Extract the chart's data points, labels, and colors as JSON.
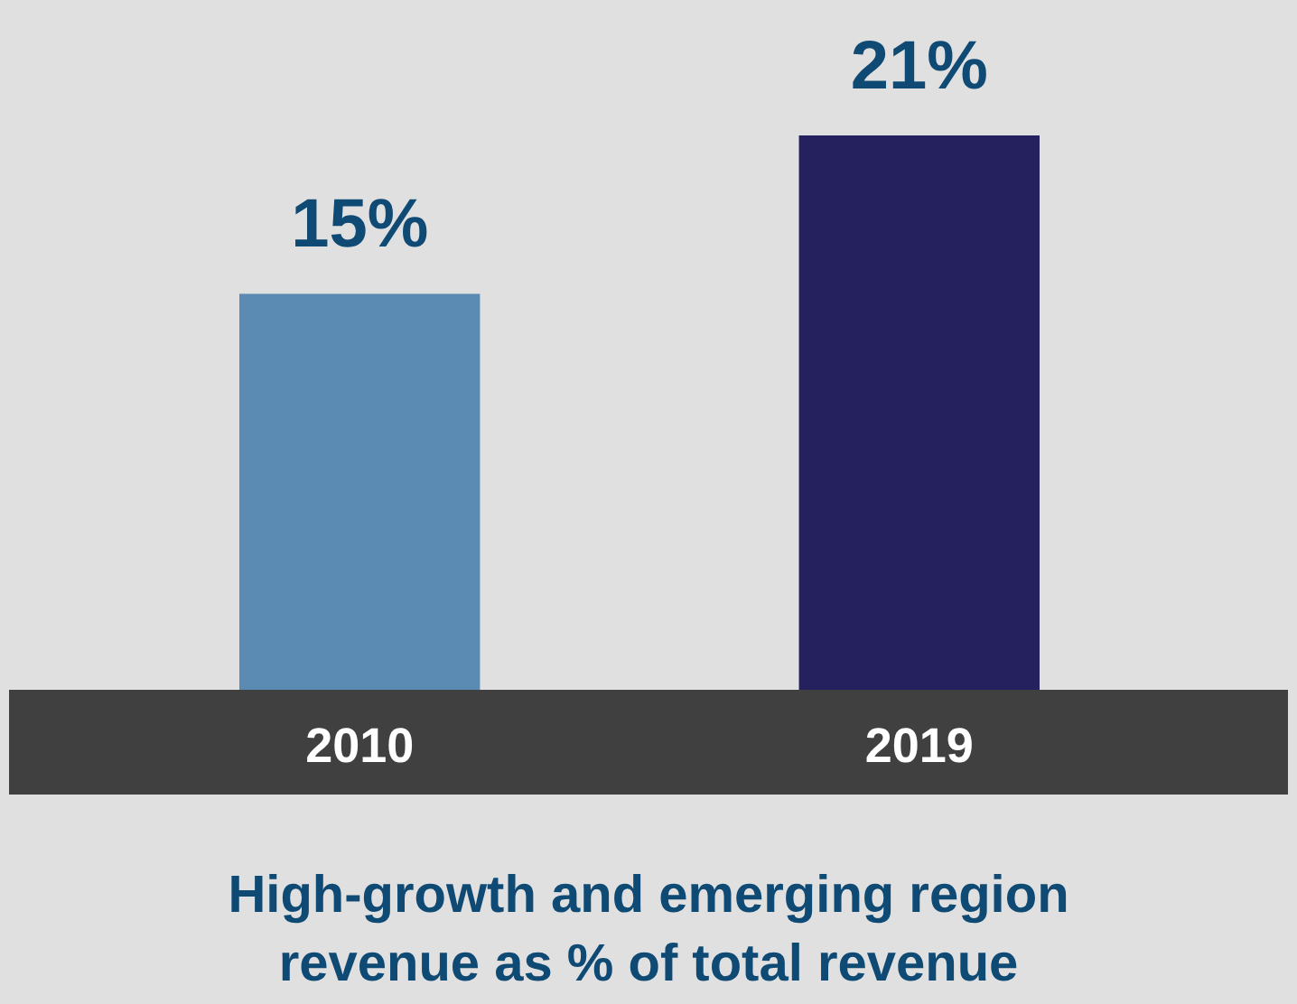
{
  "chart_data": {
    "type": "bar",
    "title": "High-growth and emerging region revenue as % of total revenue",
    "categories": [
      "2010",
      "2019"
    ],
    "values": [
      15,
      21
    ],
    "colors": [
      "#5b8ab3",
      "#25215f"
    ],
    "value_labels": [
      "15%",
      "21%"
    ]
  }
}
